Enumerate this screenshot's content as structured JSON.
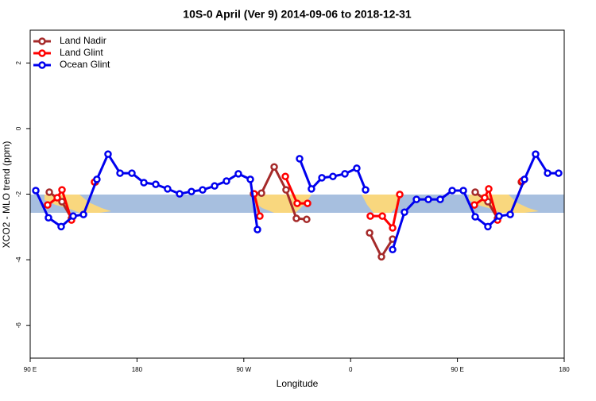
{
  "chart_data": {
    "type": "line",
    "title": "10S-0 April (Ver 9)   2014-09-06 to 2018-12-31",
    "x_label": "Longitude",
    "y_label": "XCO2 - MLO trend (ppm)",
    "xlim": [
      90,
      540
    ],
    "ylim": [
      -7,
      3
    ],
    "xticks": [
      {
        "value": 90,
        "label": "90 E"
      },
      180,
      {
        "value": 270,
        "label": "90 W"
      },
      {
        "value": 360,
        "label": "0"
      },
      {
        "value": 450,
        "label": "90 E"
      },
      {
        "value": 540,
        "label": "180"
      }
    ],
    "yticks": [
      2,
      0,
      -2,
      -4,
      -6
    ],
    "legend": "top-left",
    "series": [
      {
        "name": "Land Nadir",
        "color": "#a52a2a",
        "x": [
          106.1,
          116.8,
          124.8,
          null,
          144.9,
          null,
          278.2,
          284.9,
          295.6,
          305.6,
          314.3,
          323,
          null,
          376,
          386,
          395.4,
          null,
          465,
          475.7,
          483.8,
          null,
          503.9
        ],
        "values": [
          -1.94,
          -2.23,
          -2.74,
          null,
          -1.63,
          null,
          -1.99,
          -1.97,
          -1.17,
          -1.87,
          -2.74,
          -2.77,
          null,
          -3.18,
          -3.91,
          -3.37,
          null,
          -1.94,
          -2.23,
          -2.74,
          null,
          -1.63
        ]
      },
      {
        "name": "Land Glint",
        "color": "#ff0000",
        "x": [
          104.7,
          112.8,
          116.8,
          124.8,
          null,
          144.2,
          null,
          278.8,
          283.5,
          null,
          305,
          315,
          323.7,
          null,
          376.6,
          386.7,
          395.4,
          401.4,
          null,
          464.3,
          473,
          476.4,
          483.8,
          null,
          504.5
        ],
        "values": [
          -2.33,
          -2.11,
          -1.87,
          -2.79,
          null,
          -1.63,
          null,
          -1.99,
          -2.67,
          null,
          -1.46,
          -2.28,
          -2.28,
          null,
          -2.67,
          -2.67,
          -3.03,
          -2.01,
          null,
          -2.33,
          -2.11,
          -1.84,
          -2.79,
          null,
          -1.6
        ]
      },
      {
        "name": "Ocean Glint",
        "color": "#0000ee",
        "x": [
          94.7,
          105.4,
          116.1,
          126.2,
          134.9,
          146.2,
          155.6,
          165.7,
          175.7,
          185.8,
          195.8,
          205.8,
          215.9,
          225.9,
          235.3,
          245.4,
          255.4,
          265.4,
          275.5,
          281.5,
          null,
          317,
          327,
          335.8,
          345.1,
          355.2,
          365.2,
          372.6,
          null,
          395.4,
          405.4,
          415.5,
          425.5,
          435.5,
          445.6,
          455,
          465,
          475.7,
          485.1,
          494.5,
          506.5,
          515.9,
          526,
          535.3
        ],
        "values": [
          -1.89,
          -2.72,
          -2.99,
          -2.67,
          -2.62,
          -1.55,
          -0.78,
          -1.36,
          -1.36,
          -1.65,
          -1.7,
          -1.84,
          -1.99,
          -1.92,
          -1.87,
          -1.75,
          -1.6,
          -1.38,
          -1.55,
          -3.08,
          null,
          -0.92,
          -1.84,
          -1.5,
          -1.46,
          -1.38,
          -1.21,
          -1.87,
          null,
          -3.69,
          -2.55,
          -2.16,
          -2.16,
          -2.16,
          -1.89,
          -1.89,
          -2.69,
          -2.99,
          -2.67,
          -2.62,
          -1.55,
          -0.78,
          -1.36,
          -1.36
        ]
      }
    ]
  }
}
